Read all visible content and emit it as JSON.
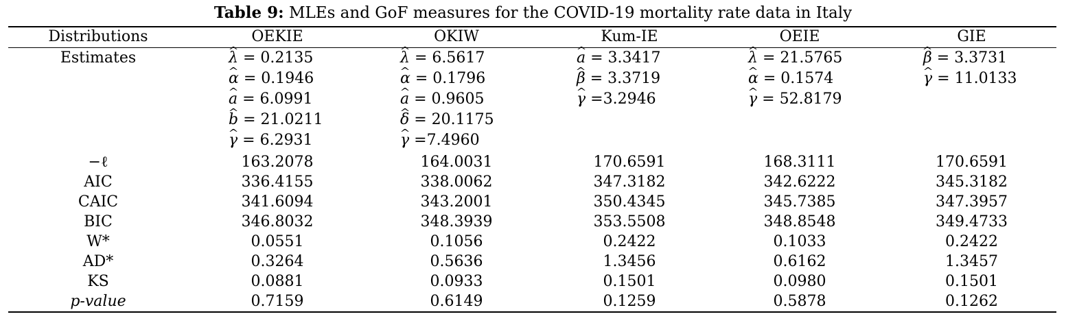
{
  "caption": {
    "label": "Table 9:",
    "text": " MLEs and GoF measures for the COVID-19 mortality rate data in Italy"
  },
  "header": [
    "Distributions",
    "OEKIE",
    "OKIW",
    "Kum-IE",
    "OEIE",
    "GIE"
  ],
  "estimates_label": "Estimates",
  "estimates": {
    "oekie": [
      {
        "sym": "λ",
        "val": " = 0.2135"
      },
      {
        "sym": "α",
        "val": " = 0.1946"
      },
      {
        "sym": "a",
        "val": " = 6.0991"
      },
      {
        "sym": "b",
        "val": " = 21.0211"
      },
      {
        "sym": "γ",
        "val": " = 6.2931"
      }
    ],
    "okiw": [
      {
        "sym": "λ",
        "val": " = 6.5617"
      },
      {
        "sym": "α",
        "val": " = 0.1796"
      },
      {
        "sym": "a",
        "val": " = 0.9605"
      },
      {
        "sym": "δ",
        "val": " = 20.1175"
      },
      {
        "sym": "γ",
        "val": " =7.4960"
      }
    ],
    "kumie": [
      {
        "sym": "a",
        "val": " = 3.3417"
      },
      {
        "sym": "β",
        "val": " = 3.3719"
      },
      {
        "sym": "γ",
        "val": " =3.2946"
      }
    ],
    "oeie": [
      {
        "sym": "λ",
        "val": " = 21.5765"
      },
      {
        "sym": "α",
        "val": " = 0.1574"
      },
      {
        "sym": "γ",
        "val": " = 52.8179"
      }
    ],
    "gie": [
      {
        "sym": "β",
        "val": " = 3.3731"
      },
      {
        "sym": "γ",
        "val": " = 11.0133"
      }
    ]
  },
  "rows": [
    {
      "label": "−ℓ",
      "values": [
        "163.2078",
        "164.0031",
        "170.6591",
        "168.3111",
        "170.6591"
      ]
    },
    {
      "label": "AIC",
      "values": [
        "336.4155",
        "338.0062",
        "347.3182",
        "342.6222",
        "345.3182"
      ]
    },
    {
      "label": "CAIC",
      "values": [
        "341.6094",
        "343.2001",
        "350.4345",
        "345.7385",
        "347.3957"
      ]
    },
    {
      "label": "BIC",
      "values": [
        "346.8032",
        "348.3939",
        "353.5508",
        "348.8548",
        "349.4733"
      ]
    },
    {
      "label": "W*",
      "values": [
        "0.0551",
        "0.1056",
        "0.2422",
        "0.1033",
        "0.2422"
      ]
    },
    {
      "label": "AD*",
      "values": [
        "0.3264",
        "0.5636",
        "1.3456",
        "0.6162",
        "1.3457"
      ]
    },
    {
      "label": "KS",
      "values": [
        "0.0881",
        "0.0933",
        "0.1501",
        "0.0980",
        "0.1501"
      ]
    },
    {
      "label": "p-value",
      "values": [
        "0.7159",
        "0.6149",
        "0.1259",
        "0.5878",
        "0.1262"
      ]
    }
  ]
}
